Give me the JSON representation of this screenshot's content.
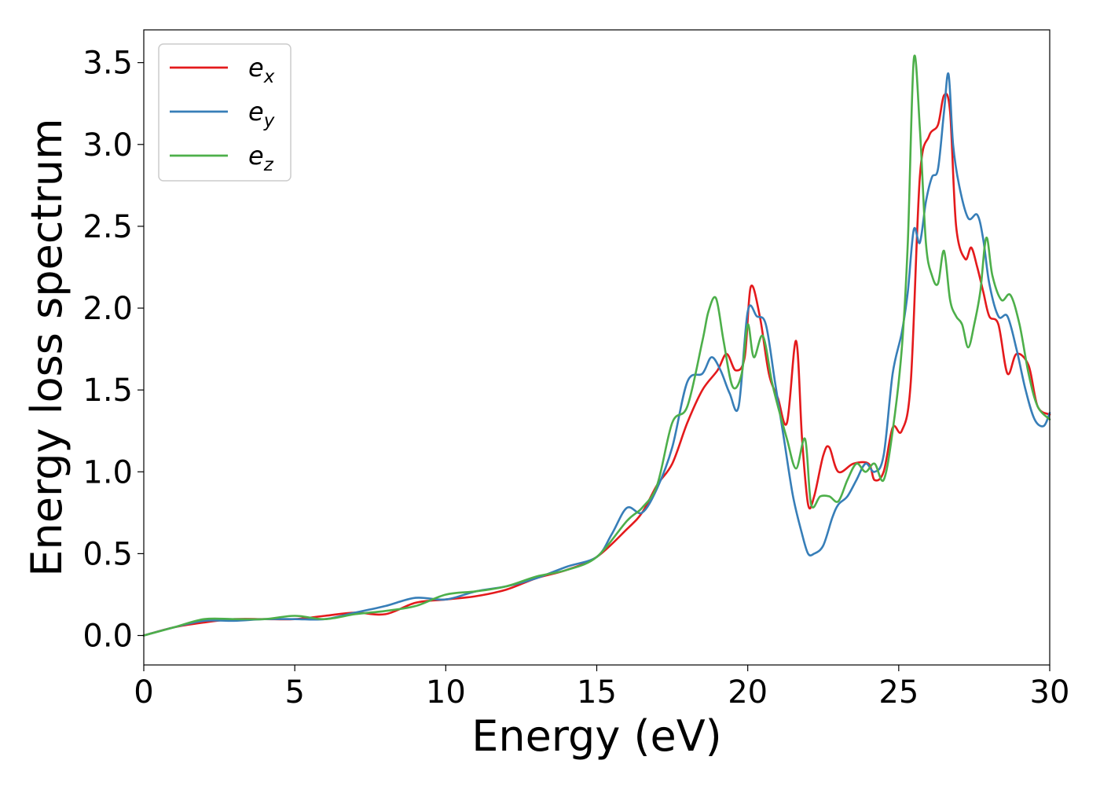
{
  "chart_data": {
    "type": "line",
    "title": "",
    "xlabel": "Energy (eV)",
    "ylabel": "Energy loss spectrum",
    "xlim": [
      0,
      30
    ],
    "ylim": [
      -0.18,
      3.7
    ],
    "xticks": [
      0,
      5,
      10,
      15,
      20,
      25,
      30
    ],
    "xtick_labels": [
      "0",
      "5",
      "10",
      "15",
      "20",
      "25",
      "30"
    ],
    "yticks": [
      0.0,
      0.5,
      1.0,
      1.5,
      2.0,
      2.5,
      3.0,
      3.5
    ],
    "ytick_labels": [
      "0.0",
      "0.5",
      "1.0",
      "1.5",
      "2.0",
      "2.5",
      "3.0",
      "3.5"
    ],
    "grid": false,
    "legend_position": "top-left",
    "series": [
      {
        "name": "e",
        "subscript": "x",
        "color": "#e41a1c",
        "x": [
          0,
          1,
          2,
          3,
          4,
          5,
          6,
          7,
          8,
          9,
          10,
          11,
          12,
          13,
          14,
          15,
          16,
          16.5,
          17,
          17.5,
          18,
          18.5,
          19,
          19.3,
          19.6,
          19.9,
          20.1,
          20.4,
          20.7,
          21.0,
          21.3,
          21.6,
          21.8,
          22.0,
          22.2,
          22.5,
          22.7,
          23.0,
          23.5,
          24.0,
          24.2,
          24.5,
          24.8,
          25.1,
          25.4,
          25.7,
          26.0,
          26.3,
          26.5,
          26.7,
          26.9,
          27.2,
          27.4,
          27.6,
          27.8,
          28.0,
          28.3,
          28.6,
          28.9,
          29.3,
          29.6,
          30.0
        ],
        "y": [
          0,
          0.05,
          0.08,
          0.1,
          0.1,
          0.1,
          0.12,
          0.14,
          0.13,
          0.2,
          0.22,
          0.24,
          0.28,
          0.35,
          0.4,
          0.48,
          0.65,
          0.75,
          0.92,
          1.05,
          1.3,
          1.5,
          1.62,
          1.72,
          1.62,
          1.7,
          2.13,
          1.95,
          1.6,
          1.45,
          1.3,
          1.8,
          1.2,
          0.8,
          0.85,
          1.1,
          1.15,
          1.0,
          1.05,
          1.05,
          0.95,
          1.0,
          1.27,
          1.25,
          1.55,
          2.8,
          3.05,
          3.12,
          3.3,
          3.2,
          2.5,
          2.3,
          2.37,
          2.25,
          2.1,
          1.95,
          1.9,
          1.6,
          1.72,
          1.65,
          1.4,
          1.35
        ]
      },
      {
        "name": "e",
        "subscript": "y",
        "color": "#377eb8",
        "x": [
          0,
          1,
          2,
          3,
          4,
          5,
          6,
          7,
          8,
          9,
          10,
          11,
          12,
          13,
          14,
          15,
          15.5,
          16,
          16.5,
          17,
          17.5,
          18,
          18.5,
          18.8,
          19.1,
          19.4,
          19.7,
          20.0,
          20.3,
          20.6,
          20.9,
          21.2,
          21.5,
          21.8,
          22.0,
          22.2,
          22.5,
          22.8,
          23.0,
          23.3,
          23.6,
          23.9,
          24.2,
          24.5,
          24.8,
          25.1,
          25.3,
          25.5,
          25.7,
          25.9,
          26.1,
          26.3,
          26.5,
          26.65,
          26.8,
          27.0,
          27.3,
          27.6,
          27.8,
          28.0,
          28.3,
          28.6,
          28.9,
          29.2,
          29.5,
          29.8,
          30.0
        ],
        "y": [
          0,
          0.05,
          0.09,
          0.09,
          0.1,
          0.1,
          0.1,
          0.14,
          0.18,
          0.23,
          0.22,
          0.27,
          0.3,
          0.35,
          0.42,
          0.48,
          0.62,
          0.78,
          0.75,
          0.9,
          1.15,
          1.55,
          1.6,
          1.7,
          1.62,
          1.48,
          1.4,
          1.98,
          1.95,
          1.9,
          1.55,
          1.2,
          0.85,
          0.62,
          0.5,
          0.5,
          0.55,
          0.72,
          0.8,
          0.85,
          0.95,
          1.05,
          1.0,
          1.1,
          1.6,
          1.85,
          2.1,
          2.48,
          2.4,
          2.65,
          2.8,
          2.85,
          3.2,
          3.43,
          3.0,
          2.75,
          2.55,
          2.57,
          2.42,
          2.15,
          1.95,
          1.95,
          1.75,
          1.5,
          1.32,
          1.28,
          1.36
        ]
      },
      {
        "name": "e",
        "subscript": "z",
        "color": "#4daf4a",
        "x": [
          0,
          1,
          2,
          3,
          4,
          5,
          6,
          7,
          8,
          9,
          10,
          11,
          12,
          13,
          14,
          15,
          16,
          16.5,
          17,
          17.5,
          18,
          18.5,
          18.7,
          18.95,
          19.2,
          19.5,
          19.8,
          20.0,
          20.2,
          20.5,
          20.8,
          21.0,
          21.3,
          21.6,
          21.9,
          22.1,
          22.4,
          22.7,
          23.0,
          23.3,
          23.6,
          23.9,
          24.2,
          24.5,
          24.8,
          25.1,
          25.3,
          25.5,
          25.7,
          25.9,
          26.1,
          26.3,
          26.5,
          26.7,
          26.9,
          27.1,
          27.3,
          27.5,
          27.7,
          27.9,
          28.1,
          28.4,
          28.7,
          29.0,
          29.3,
          29.6,
          30.0
        ],
        "y": [
          0,
          0.05,
          0.1,
          0.1,
          0.1,
          0.12,
          0.1,
          0.13,
          0.15,
          0.18,
          0.25,
          0.27,
          0.3,
          0.36,
          0.4,
          0.48,
          0.7,
          0.78,
          0.92,
          1.3,
          1.4,
          1.8,
          1.98,
          2.06,
          1.8,
          1.52,
          1.6,
          1.9,
          1.7,
          1.83,
          1.55,
          1.4,
          1.2,
          1.02,
          1.2,
          0.8,
          0.85,
          0.85,
          0.82,
          0.95,
          1.05,
          1.0,
          1.05,
          0.95,
          1.25,
          1.75,
          2.4,
          3.52,
          3.1,
          2.4,
          2.2,
          2.15,
          2.35,
          2.05,
          1.95,
          1.9,
          1.76,
          1.9,
          2.1,
          2.43,
          2.2,
          2.05,
          2.08,
          1.9,
          1.6,
          1.4,
          1.32
        ]
      }
    ]
  }
}
